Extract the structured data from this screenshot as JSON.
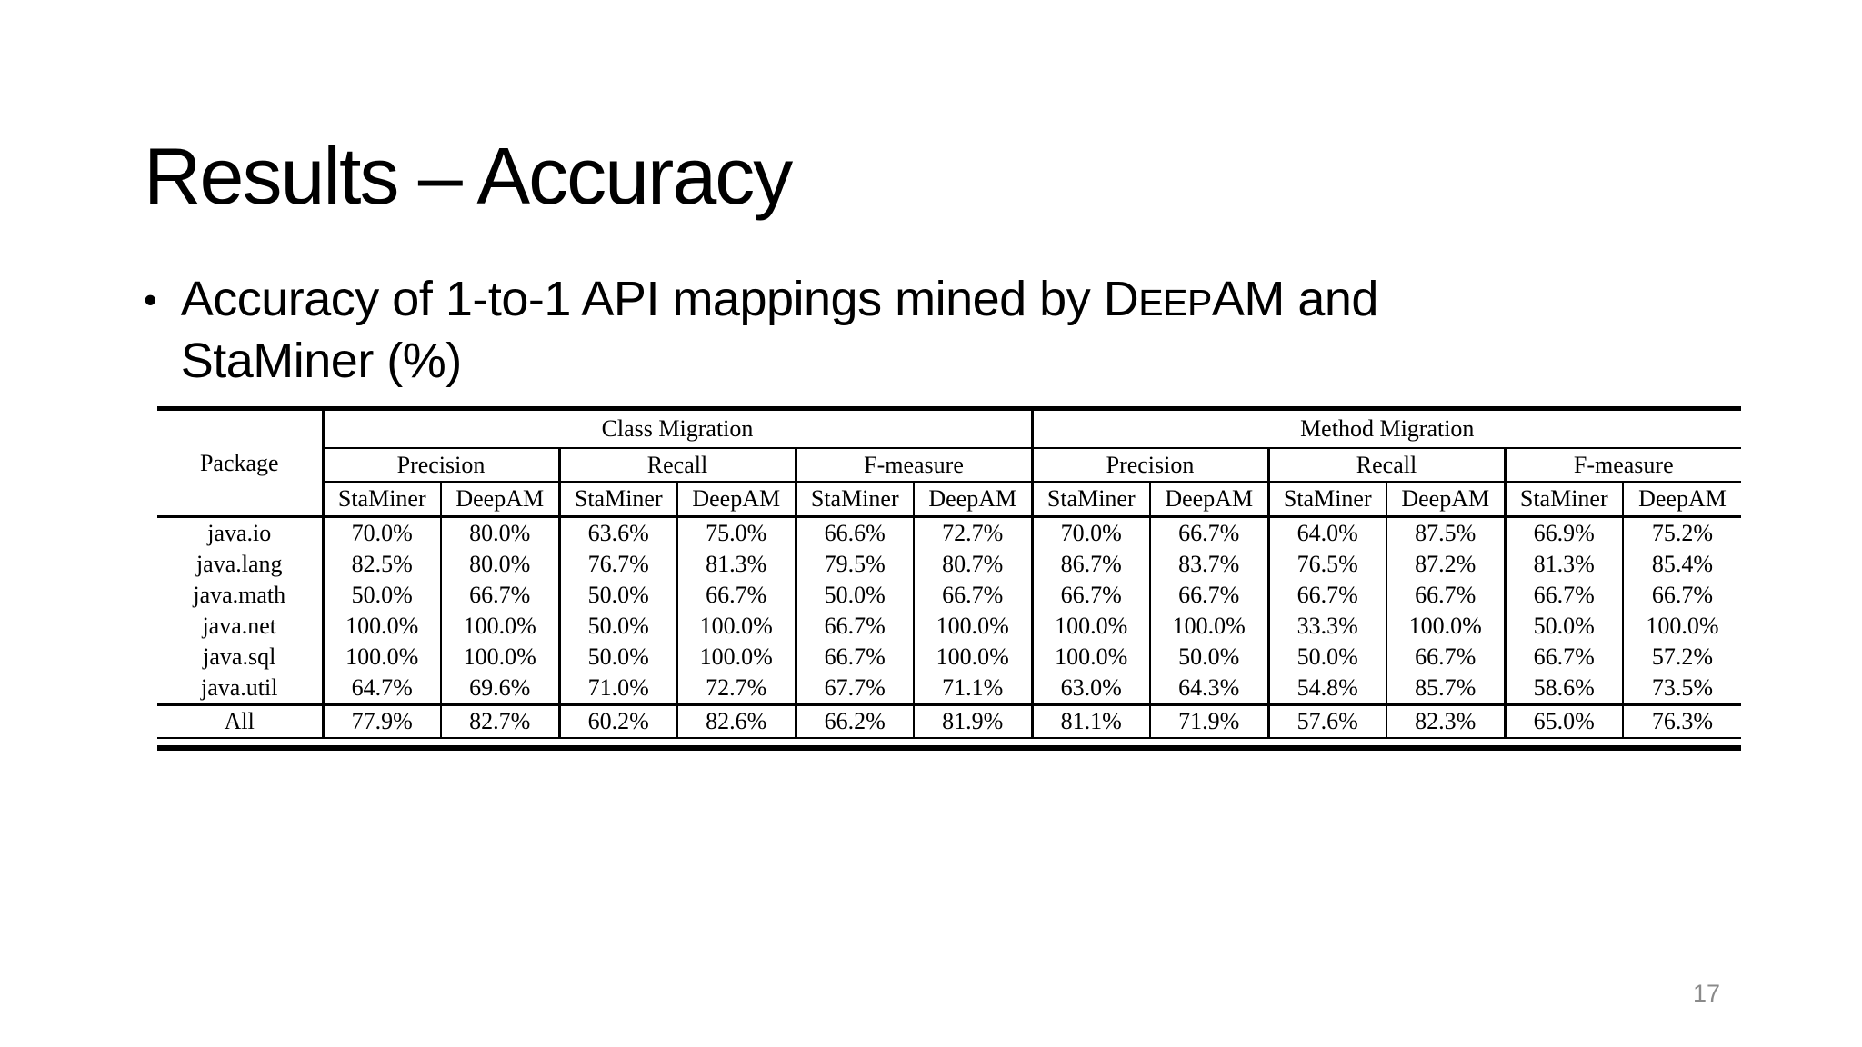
{
  "slide": {
    "title": "Results – Accuracy",
    "page_number": "17"
  },
  "colors": {
    "background": "#ffffff",
    "text": "#000000",
    "page_number": "#8a8a8a"
  },
  "bullet": {
    "marker": "•",
    "line1_pre": "Accuracy of 1-to-1 API mappings mined by D",
    "line1_smallcaps": "EEP",
    "line1_post": "AM and",
    "line2": "StaMiner (%)"
  },
  "table": {
    "package_header": "Package",
    "group_headers": [
      "Class Migration",
      "Method Migration"
    ],
    "measure_headers": [
      "Precision",
      "Recall",
      "F-measure",
      "Precision",
      "Recall",
      "F-measure"
    ],
    "miner_headers": [
      "StaMiner",
      "DeepAM",
      "StaMiner",
      "DeepAM",
      "StaMiner",
      "DeepAM",
      "StaMiner",
      "DeepAM",
      "StaMiner",
      "DeepAM",
      "StaMiner",
      "DeepAM"
    ],
    "rows": [
      {
        "package": "java.io",
        "values": [
          "70.0%",
          "80.0%",
          "63.6%",
          "75.0%",
          "66.6%",
          "72.7%",
          "70.0%",
          "66.7%",
          "64.0%",
          "87.5%",
          "66.9%",
          "75.2%"
        ],
        "bold": [],
        "is_total": false
      },
      {
        "package": "java.lang",
        "values": [
          "82.5%",
          "80.0%",
          "76.7%",
          "81.3%",
          "79.5%",
          "80.7%",
          "86.7%",
          "83.7%",
          "76.5%",
          "87.2%",
          "81.3%",
          "85.4%"
        ],
        "bold": [],
        "is_total": false
      },
      {
        "package": "java.math",
        "values": [
          "50.0%",
          "66.7%",
          "50.0%",
          "66.7%",
          "50.0%",
          "66.7%",
          "66.7%",
          "66.7%",
          "66.7%",
          "66.7%",
          "66.7%",
          "66.7%"
        ],
        "bold": [],
        "is_total": false
      },
      {
        "package": "java.net",
        "values": [
          "100.0%",
          "100.0%",
          "50.0%",
          "100.0%",
          "66.7%",
          "100.0%",
          "100.0%",
          "100.0%",
          "33.3%",
          "100.0%",
          "50.0%",
          "100.0%"
        ],
        "bold": [],
        "is_total": false
      },
      {
        "package": "java.sql",
        "values": [
          "100.0%",
          "100.0%",
          "50.0%",
          "100.0%",
          "66.7%",
          "100.0%",
          "100.0%",
          "50.0%",
          "50.0%",
          "66.7%",
          "66.7%",
          "57.2%"
        ],
        "bold": [],
        "is_total": false
      },
      {
        "package": "java.util",
        "values": [
          "64.7%",
          "69.6%",
          "71.0%",
          "72.7%",
          "67.7%",
          "71.1%",
          "63.0%",
          "64.3%",
          "54.8%",
          "85.7%",
          "58.6%",
          "73.5%"
        ],
        "bold": [],
        "is_total": false
      },
      {
        "package": "All",
        "values": [
          "77.9%",
          "82.7%",
          "60.2%",
          "82.6%",
          "66.2%",
          "81.9%",
          "81.1%",
          "71.9%",
          "57.6%",
          "82.3%",
          "65.0%",
          "76.3%"
        ],
        "bold": [
          1,
          3,
          5,
          9,
          11
        ],
        "is_total": true
      }
    ]
  }
}
